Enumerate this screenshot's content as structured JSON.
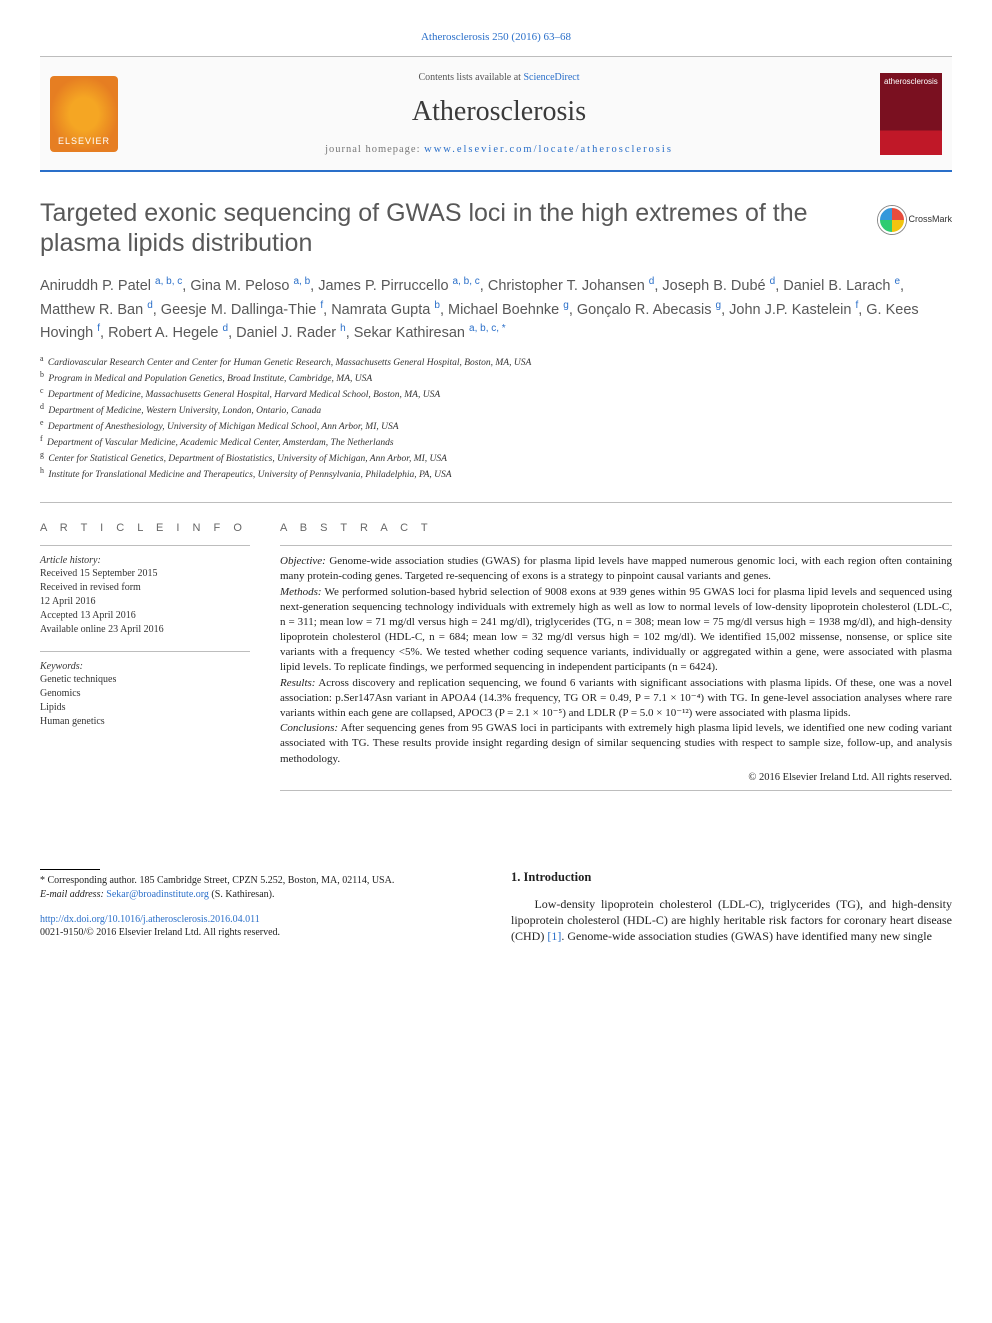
{
  "citation": "Atherosclerosis 250 (2016) 63–68",
  "header": {
    "contents_available": "Contents lists available at",
    "contents_link": "ScienceDirect",
    "journal_title": "Atherosclerosis",
    "homepage_label": "journal homepage:",
    "homepage_url": "www.elsevier.com/locate/atherosclerosis",
    "elsevier_label": "ELSEVIER",
    "cover_label": "atherosclerosis",
    "crossmark": "CrossMark"
  },
  "article": {
    "title": "Targeted exonic sequencing of GWAS loci in the high extremes of the plasma lipids distribution"
  },
  "authors_html": "Aniruddh P. Patel <sup>a, b, c</sup>, Gina M. Peloso <sup>a, b</sup>, James P. Pirruccello <sup>a, b, c</sup>, Christopher T. Johansen <sup>d</sup>, Joseph B. Dubé <sup>d</sup>, Daniel B. Larach <sup>e</sup>, Matthew R. Ban <sup>d</sup>, Geesje M. Dallinga-Thie <sup>f</sup>, Namrata Gupta <sup>b</sup>, Michael Boehnke <sup>g</sup>, Gonçalo R. Abecasis <sup>g</sup>, John J.P. Kastelein <sup>f</sup>, G. Kees Hovingh <sup>f</sup>, Robert A. Hegele <sup>d</sup>, Daniel J. Rader <sup>h</sup>, Sekar Kathiresan <sup>a, b, c, *</sup>",
  "affiliations": [
    {
      "sup": "a",
      "text": "Cardiovascular Research Center and Center for Human Genetic Research, Massachusetts General Hospital, Boston, MA, USA"
    },
    {
      "sup": "b",
      "text": "Program in Medical and Population Genetics, Broad Institute, Cambridge, MA, USA"
    },
    {
      "sup": "c",
      "text": "Department of Medicine, Massachusetts General Hospital, Harvard Medical School, Boston, MA, USA"
    },
    {
      "sup": "d",
      "text": "Department of Medicine, Western University, London, Ontario, Canada"
    },
    {
      "sup": "e",
      "text": "Department of Anesthesiology, University of Michigan Medical School, Ann Arbor, MI, USA"
    },
    {
      "sup": "f",
      "text": "Department of Vascular Medicine, Academic Medical Center, Amsterdam, The Netherlands"
    },
    {
      "sup": "g",
      "text": "Center for Statistical Genetics, Department of Biostatistics, University of Michigan, Ann Arbor, MI, USA"
    },
    {
      "sup": "h",
      "text": "Institute for Translational Medicine and Therapeutics, University of Pennsylvania, Philadelphia, PA, USA"
    }
  ],
  "article_info": {
    "heading": "A R T I C L E   I N F O",
    "hist_label": "Article history:",
    "history": [
      "Received 15 September 2015",
      "Received in revised form",
      "12 April 2016",
      "Accepted 13 April 2016",
      "Available online 23 April 2016"
    ],
    "kw_label": "Keywords:",
    "keywords": [
      "Genetic techniques",
      "Genomics",
      "Lipids",
      "Human genetics"
    ]
  },
  "abstract": {
    "heading": "A B S T R A C T",
    "objective_lbl": "Objective:",
    "objective": "Genome-wide association studies (GWAS) for plasma lipid levels have mapped numerous genomic loci, with each region often containing many protein-coding genes. Targeted re-sequencing of exons is a strategy to pinpoint causal variants and genes.",
    "methods_lbl": "Methods:",
    "methods": "We performed solution-based hybrid selection of 9008 exons at 939 genes within 95 GWAS loci for plasma lipid levels and sequenced using next-generation sequencing technology individuals with extremely high as well as low to normal levels of low-density lipoprotein cholesterol (LDL-C, n = 311; mean low = 71 mg/dl versus high = 241 mg/dl), triglycerides (TG, n = 308; mean low = 75 mg/dl versus high = 1938 mg/dl), and high-density lipoprotein cholesterol (HDL-C, n = 684; mean low = 32 mg/dl versus high = 102 mg/dl). We identified 15,002 missense, nonsense, or splice site variants with a frequency <5%. We tested whether coding sequence variants, individually or aggregated within a gene, were associated with plasma lipid levels. To replicate findings, we performed sequencing in independent participants (n = 6424).",
    "results_lbl": "Results:",
    "results": "Across discovery and replication sequencing, we found 6 variants with significant associations with plasma lipids. Of these, one was a novel association: p.Ser147Asn variant in APOA4 (14.3% frequency, TG OR = 0.49, P = 7.1 × 10⁻⁴) with TG. In gene-level association analyses where rare variants within each gene are collapsed, APOC3 (P = 2.1 × 10⁻⁵) and LDLR (P = 5.0 × 10⁻¹²) were associated with plasma lipids.",
    "conclusions_lbl": "Conclusions:",
    "conclusions": "After sequencing genes from 95 GWAS loci in participants with extremely high plasma lipid levels, we identified one new coding variant associated with TG. These results provide insight regarding design of similar sequencing studies with respect to sample size, follow-up, and analysis methodology.",
    "copyright": "© 2016 Elsevier Ireland Ltd. All rights reserved."
  },
  "intro": {
    "heading": "1.  Introduction",
    "para": "Low-density lipoprotein cholesterol (LDL-C), triglycerides (TG), and high-density lipoprotein cholesterol (HDL-C) are highly heritable risk factors for coronary heart disease (CHD) ",
    "ref": "[1]",
    "para2": ". Genome-wide association studies (GWAS) have identified many new single"
  },
  "footnotes": {
    "corr_label": "* Corresponding author.",
    "corr_addr": "185 Cambridge Street, CPZN 5.252, Boston, MA, 02114, USA.",
    "email_label": "E-mail address:",
    "email": "Sekar@broadinstitute.org",
    "email_who": "(S. Kathiresan).",
    "doi": "http://dx.doi.org/10.1016/j.atherosclerosis.2016.04.011",
    "issn": "0021-9150/© 2016 Elsevier Ireland Ltd. All rights reserved."
  },
  "colors": {
    "link": "#2a6fc9",
    "rule": "#bdbdbd",
    "text_muted": "#585858"
  }
}
